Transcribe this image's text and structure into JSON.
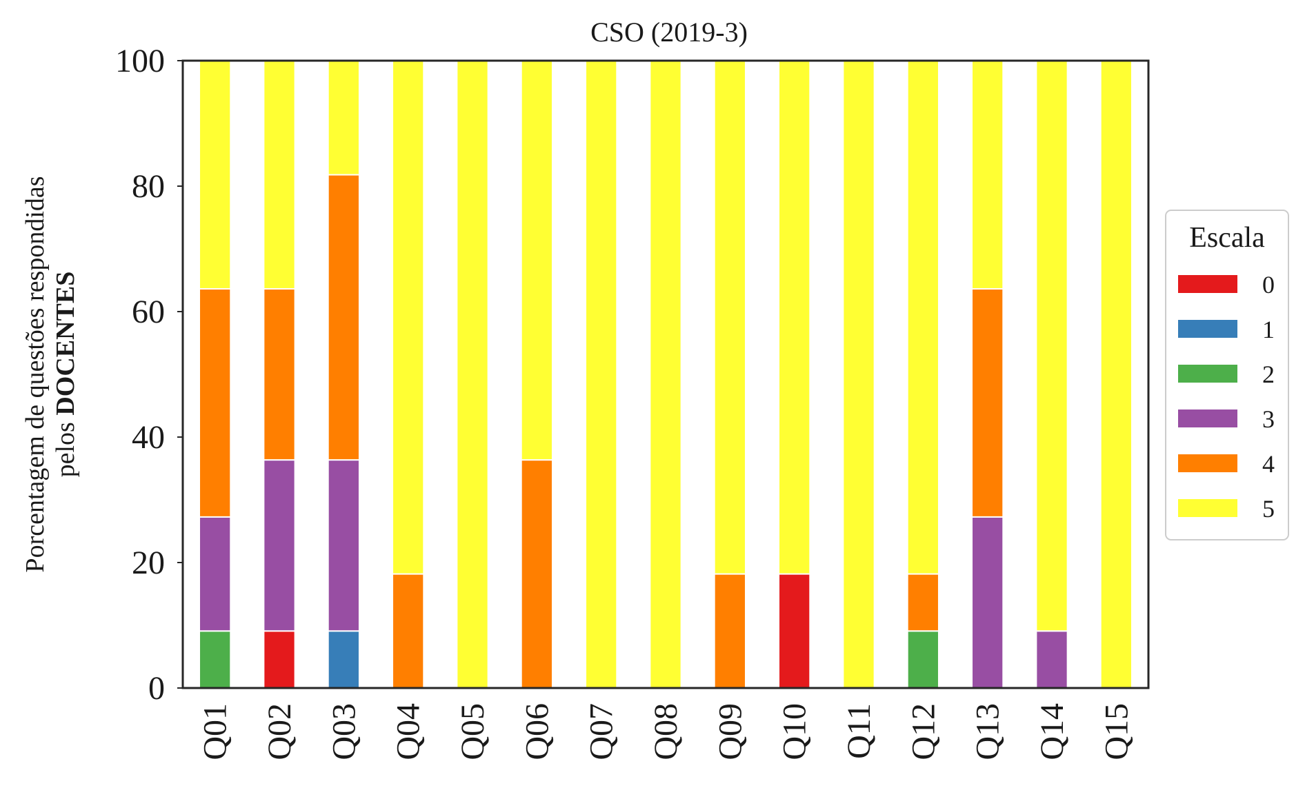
{
  "chart_data": {
    "type": "bar",
    "stacked": true,
    "title": "CSO (2019-3)",
    "ylabel_line1": "Porcentagem de questões respondidas",
    "ylabel_line2_prefix": "pelos ",
    "ylabel_line2_bold": "DOCENTES",
    "ylim": [
      0,
      100
    ],
    "yticks": [
      0,
      20,
      40,
      60,
      80,
      100
    ],
    "categories": [
      "Q01",
      "Q02",
      "Q03",
      "Q04",
      "Q05",
      "Q06",
      "Q07",
      "Q08",
      "Q09",
      "Q10",
      "Q11",
      "Q12",
      "Q13",
      "Q14",
      "Q15"
    ],
    "legend": {
      "title": "Escala",
      "position": "right"
    },
    "grid": false,
    "series": [
      {
        "name": "0",
        "color": "#e41a1c",
        "values": [
          0,
          9.09,
          0,
          0,
          0,
          0,
          0,
          0,
          0,
          18.18,
          0,
          0,
          0,
          0,
          0
        ]
      },
      {
        "name": "1",
        "color": "#377eb8",
        "values": [
          0,
          0,
          9.09,
          0,
          0,
          0,
          0,
          0,
          0,
          0,
          0,
          0,
          0,
          0,
          0
        ]
      },
      {
        "name": "2",
        "color": "#4daf4a",
        "values": [
          9.09,
          0,
          0,
          0,
          0,
          0,
          0,
          0,
          0,
          0,
          0,
          9.09,
          0,
          0,
          0
        ]
      },
      {
        "name": "3",
        "color": "#984ea3",
        "values": [
          18.18,
          27.27,
          27.27,
          0,
          0,
          0,
          0,
          0,
          0,
          0,
          0,
          0,
          27.27,
          9.09,
          0
        ]
      },
      {
        "name": "4",
        "color": "#ff7f00",
        "values": [
          36.36,
          27.27,
          45.45,
          18.18,
          0,
          36.36,
          0,
          0,
          18.18,
          0,
          0,
          9.09,
          36.36,
          0,
          0
        ]
      },
      {
        "name": "5",
        "color": "#ffff33",
        "values": [
          36.36,
          36.36,
          18.18,
          81.82,
          100,
          63.64,
          100,
          100,
          81.82,
          81.82,
          100,
          81.82,
          36.36,
          90.91,
          100
        ]
      }
    ]
  }
}
